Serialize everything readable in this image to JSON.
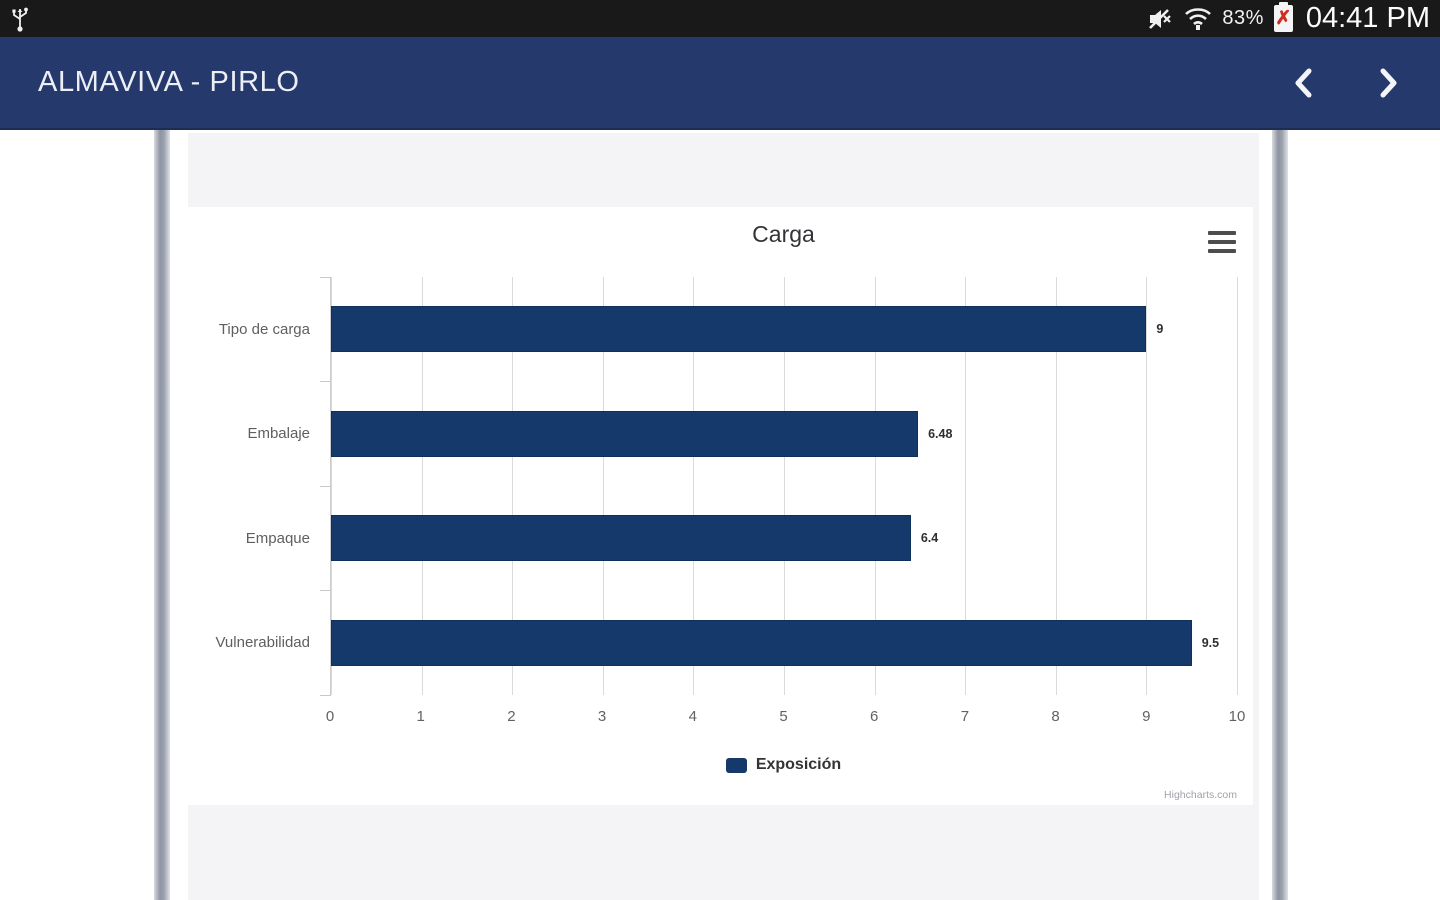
{
  "status_bar": {
    "battery_percent": "83%",
    "time": "04:41 PM",
    "icons": [
      "usb-icon",
      "mute-icon",
      "wifi-icon",
      "battery-error-icon"
    ]
  },
  "app_bar": {
    "title": "ALMAVIVA - PIRLO",
    "back_icon": "chevron-left-icon",
    "forward_icon": "chevron-right-icon"
  },
  "chart_data": {
    "type": "bar",
    "orientation": "horizontal",
    "title": "Carga",
    "categories": [
      "Tipo de carga",
      "Embalaje",
      "Empaque",
      "Vulnerabilidad"
    ],
    "series": [
      {
        "name": "Exposición",
        "values": [
          9,
          6.48,
          6.4,
          9.5
        ]
      }
    ],
    "value_labels": [
      "9",
      "6.48",
      "6.4",
      "9.5"
    ],
    "xlim": [
      0,
      10
    ],
    "x_ticks": [
      0,
      1,
      2,
      3,
      4,
      5,
      6,
      7,
      8,
      9,
      10
    ],
    "grid": true,
    "legend_position": "bottom",
    "bar_color": "#15396a",
    "credits": "Highcharts.com"
  },
  "colors": {
    "app_bar": "#26396d",
    "bar_fill": "#15396a",
    "page_bg": "#f4f4f6",
    "status_bar": "#191919"
  }
}
